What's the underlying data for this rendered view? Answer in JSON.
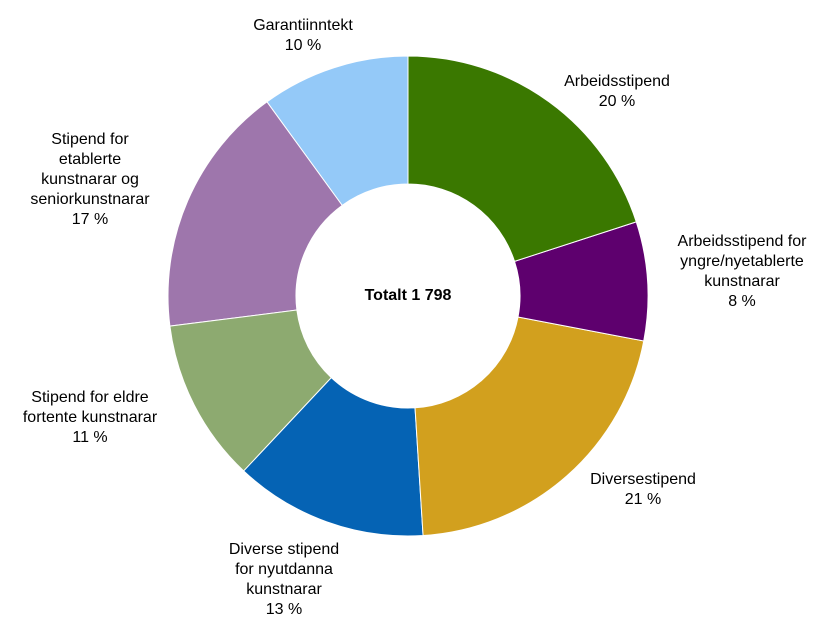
{
  "chart_data": {
    "type": "donut",
    "center_text": "Totalt 1 798",
    "categories": [
      "Arbeidsstipend",
      "Arbeidsstipend for yngre/nyetablerte kunstnarar",
      "Diversestipend",
      "Diverse stipend for nyutdanna kunstnarar",
      "Stipend for eldre fortente kunstnarar",
      "Stipend for etablerte kunstnarar og seniorkunstnarar",
      "Garantiinntekt"
    ],
    "values": [
      20,
      8,
      21,
      13,
      11,
      17,
      10
    ],
    "value_labels": [
      "20 %",
      "8 %",
      "21 %",
      "13 %",
      "11 %",
      "17 %",
      "10 %"
    ],
    "colors": [
      "#3a7800",
      "#5e006e",
      "#d2a01e",
      "#0563b4",
      "#8daa70",
      "#9e76ac",
      "#94c9f8"
    ]
  }
}
